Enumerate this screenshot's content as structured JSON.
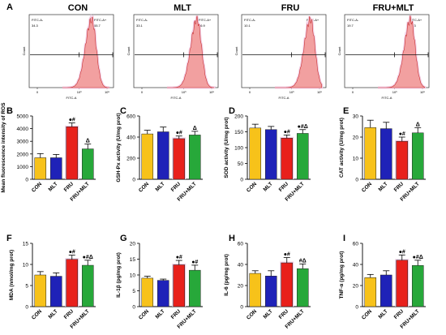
{
  "colors": {
    "CON": "#f7c21a",
    "MLT": "#1f22b8",
    "FRU": "#e8201c",
    "FRU+MLT": "#27a83a",
    "flow_fill": "#f2a0a0",
    "flow_stroke": "#c83232",
    "flow_glow": "#f3d0e6"
  },
  "panel_letters": [
    "A",
    "B",
    "C",
    "D",
    "E",
    "F",
    "G",
    "H",
    "I"
  ],
  "flow": {
    "common": {
      "left_gate": "FITC-A-",
      "right_gate": "FITC-A+",
      "ylabel": "Count",
      "xlabel": "FITC-A",
      "xticks": [
        "0",
        "10³",
        "10⁵"
      ]
    },
    "panels": [
      {
        "title": "CON",
        "pct_minus": "34.3",
        "pct_plus": "65.7",
        "peak_decade": 3.9
      },
      {
        "title": "MLT",
        "pct_minus": "33.1",
        "pct_plus": "66.9",
        "peak_decade": 3.95
      },
      {
        "title": "FRU",
        "pct_minus": "10.1",
        "pct_plus": "89.9",
        "peak_decade": 4.35
      },
      {
        "title": "FRU+MLT",
        "pct_minus": "19.7",
        "pct_plus": "80.3",
        "peak_decade": 4.15
      }
    ]
  },
  "chart_data": [
    {
      "id": "B",
      "type": "bar",
      "ylabel": "Mean fluorescence intensity of ROS",
      "categories": [
        "CON",
        "MLT",
        "FRU",
        "FRU+MLT"
      ],
      "values": [
        1700,
        1700,
        4150,
        2400
      ],
      "errors": [
        330,
        260,
        300,
        380
      ],
      "ylim": [
        0,
        5000
      ],
      "yticks": [
        "0",
        "1000",
        "2000",
        "3000",
        "4000",
        "5000"
      ],
      "annotations": [
        "",
        "",
        "●#",
        "Δ"
      ]
    },
    {
      "id": "C",
      "type": "bar",
      "ylabel": "GSH-Px activity (U/mg prot)",
      "categories": [
        "CON",
        "MLT",
        "FRU",
        "FRU+MLT"
      ],
      "values": [
        430,
        450,
        385,
        420
      ],
      "errors": [
        35,
        45,
        25,
        35
      ],
      "ylim": [
        0,
        600
      ],
      "yticks": [
        "0",
        "200",
        "400",
        "600"
      ],
      "annotations": [
        "",
        "",
        "●#",
        "Δ"
      ]
    },
    {
      "id": "D",
      "type": "bar",
      "ylabel": "SOD activity (U/mg prot)",
      "categories": [
        "CON",
        "MLT",
        "FRU",
        "FRU+MLT"
      ],
      "values": [
        162,
        157,
        130,
        145
      ],
      "errors": [
        12,
        10,
        10,
        12
      ],
      "ylim": [
        0,
        200
      ],
      "yticks": [
        "0",
        "50",
        "100",
        "150",
        "200"
      ],
      "annotations": [
        "",
        "",
        "●#",
        "●#Δ"
      ]
    },
    {
      "id": "E",
      "type": "bar",
      "ylabel": "CAT activity (U/mg prot)",
      "categories": [
        "CON",
        "MLT",
        "FRU",
        "FRU+MLT"
      ],
      "values": [
        24.5,
        24,
        18,
        22
      ],
      "errors": [
        3.5,
        3,
        2,
        2.5
      ],
      "ylim": [
        0,
        30
      ],
      "yticks": [
        "0",
        "10",
        "20",
        "30"
      ],
      "annotations": [
        "",
        "",
        "●#",
        "Δ"
      ]
    },
    {
      "id": "F",
      "type": "bar",
      "ylabel": "MDA (nmol/mg prot)",
      "categories": [
        "CON",
        "MLT",
        "FRU",
        "FRU+MLT"
      ],
      "values": [
        7.5,
        7.2,
        11.2,
        9.8
      ],
      "errors": [
        0.8,
        0.8,
        1,
        1.2
      ],
      "ylim": [
        0,
        15
      ],
      "yticks": [
        "0",
        "5",
        "10",
        "15"
      ],
      "annotations": [
        "",
        "",
        "●#",
        "●#Δ"
      ]
    },
    {
      "id": "G",
      "type": "bar",
      "ylabel": "IL-1β (pg/mg prot)",
      "categories": [
        "CON",
        "MLT",
        "FRU",
        "FRU+MLT"
      ],
      "values": [
        9,
        8.3,
        13.2,
        11.5
      ],
      "errors": [
        0.6,
        0.4,
        1.4,
        1.6
      ],
      "ylim": [
        0,
        20
      ],
      "yticks": [
        "0",
        "5",
        "10",
        "15",
        "20"
      ],
      "annotations": [
        "",
        "",
        "●#",
        "●#"
      ]
    },
    {
      "id": "H",
      "type": "bar",
      "ylabel": "IL-6 (pg/mg prot)",
      "categories": [
        "CON",
        "MLT",
        "FRU",
        "FRU+MLT"
      ],
      "values": [
        31.5,
        29,
        41.5,
        36
      ],
      "errors": [
        2.5,
        5,
        5,
        4.5
      ],
      "ylim": [
        0,
        60
      ],
      "yticks": [
        "0",
        "20",
        "40",
        "60"
      ],
      "annotations": [
        "",
        "",
        "●#",
        "#Δ"
      ]
    },
    {
      "id": "I",
      "type": "bar",
      "ylabel": "TNF-α (pg/mg prot)",
      "categories": [
        "CON",
        "MLT",
        "FRU",
        "FRU+MLT"
      ],
      "values": [
        27.5,
        30,
        44,
        39
      ],
      "errors": [
        3,
        4,
        5,
        5
      ],
      "ylim": [
        0,
        60
      ],
      "yticks": [
        "0",
        "20",
        "40",
        "60"
      ],
      "annotations": [
        "",
        "",
        "●#",
        "●#Δ"
      ]
    }
  ]
}
